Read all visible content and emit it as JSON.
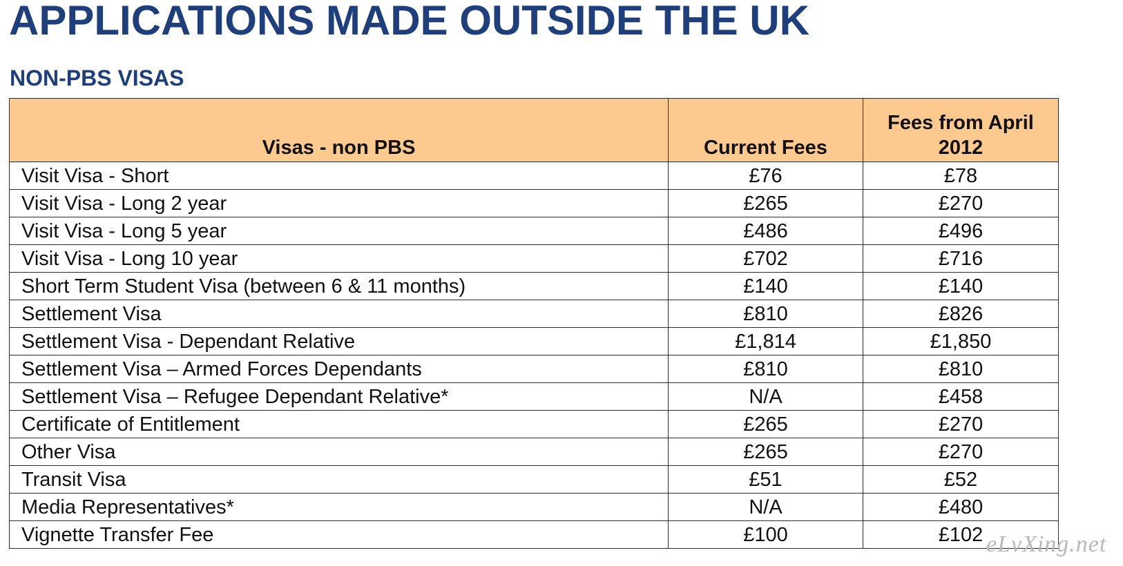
{
  "document": {
    "title": "APPLICATIONS MADE OUTSIDE THE UK",
    "subtitle": "NON-PBS VISAS",
    "watermark": "eLvXing.net"
  },
  "table": {
    "headers": [
      "Visas - non PBS",
      "Current Fees",
      "Fees from April 2012"
    ],
    "rows": [
      [
        "Visit Visa - Short",
        "£76",
        "£78"
      ],
      [
        "Visit Visa - Long 2 year",
        "£265",
        "£270"
      ],
      [
        "Visit Visa - Long 5 year",
        "£486",
        "£496"
      ],
      [
        "Visit Visa - Long 10 year",
        "£702",
        "£716"
      ],
      [
        "Short Term Student Visa (between 6 & 11 months)",
        "£140",
        "£140"
      ],
      [
        "Settlement Visa",
        "£810",
        "£826"
      ],
      [
        "Settlement Visa - Dependant Relative",
        "£1,814",
        "£1,850"
      ],
      [
        "Settlement Visa – Armed Forces Dependants",
        "£810",
        "£810"
      ],
      [
        "Settlement Visa – Refugee Dependant Relative*",
        "N/A",
        "£458"
      ],
      [
        "Certificate of Entitlement",
        "£265",
        "£270"
      ],
      [
        "Other Visa",
        "£265",
        "£270"
      ],
      [
        "Transit Visa",
        "£51",
        "£52"
      ],
      [
        "Media Representatives*",
        "N/A",
        "£480"
      ],
      [
        "Vignette Transfer Fee",
        "£100",
        "£102"
      ]
    ]
  },
  "colors": {
    "heading": "#1f3f7c",
    "header_fill": "#fcc98f",
    "border": "#2a2a2a"
  }
}
